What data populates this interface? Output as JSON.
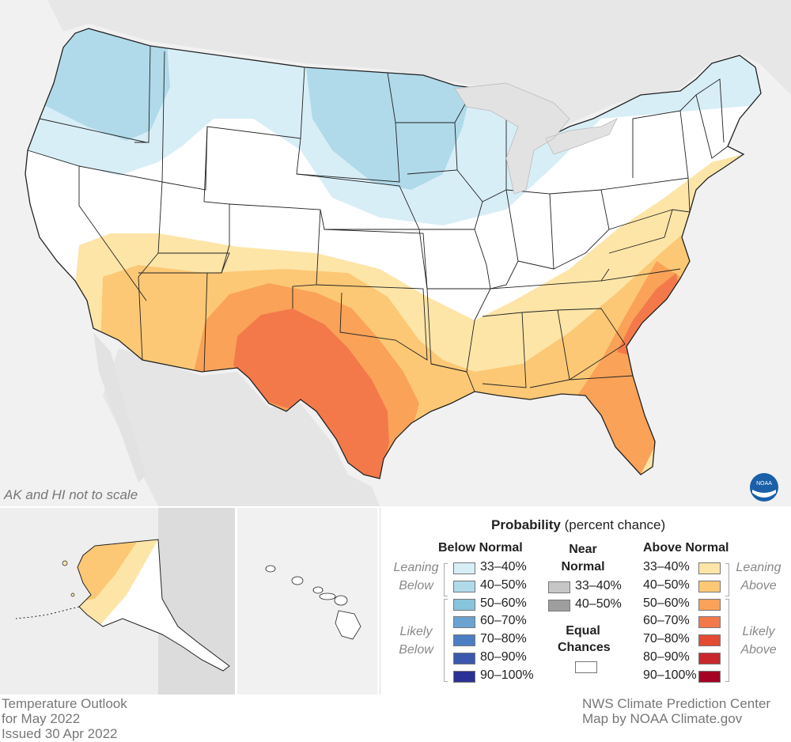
{
  "title": "Temperature Outlook",
  "period": "for May 2022",
  "issued": "Issued 30 Apr 2022",
  "credit_center": "NWS Climate Prediction Center",
  "credit_map": "Map by NOAA Climate.gov",
  "scale_note": "AK and HI not to scale",
  "logo_text": "NOAA",
  "legend": {
    "title_bold": "Probability",
    "title_rest": "(percent chance)",
    "below": {
      "header": "Below Normal",
      "leaning_label": [
        "Leaning",
        "Below"
      ],
      "likely_label": [
        "Likely",
        "Below"
      ],
      "bins": [
        {
          "label": "33–40%",
          "color": "#d8eef7"
        },
        {
          "label": "40–50%",
          "color": "#b0daea"
        },
        {
          "label": "50–60%",
          "color": "#88c4dc"
        },
        {
          "label": "60–70%",
          "color": "#6aa3d1"
        },
        {
          "label": "70–80%",
          "color": "#4d7ec4"
        },
        {
          "label": "80–90%",
          "color": "#3c58ad"
        },
        {
          "label": "90–100%",
          "color": "#2b3194"
        }
      ]
    },
    "near": {
      "header": [
        "Near",
        "Normal"
      ],
      "bins": [
        {
          "label": "33–40%",
          "color": "#c6c6c6"
        },
        {
          "label": "40–50%",
          "color": "#9e9e9e"
        }
      ],
      "equal_header": [
        "Equal",
        "Chances"
      ],
      "equal_color": "#ffffff"
    },
    "above": {
      "header": "Above Normal",
      "leaning_label": [
        "Leaning",
        "Above"
      ],
      "likely_label": [
        "Likely",
        "Above"
      ],
      "bins": [
        {
          "label": "33–40%",
          "color": "#fde5a8"
        },
        {
          "label": "40–50%",
          "color": "#fcc875"
        },
        {
          "label": "50–60%",
          "color": "#f9a258"
        },
        {
          "label": "60–70%",
          "color": "#f4794a"
        },
        {
          "label": "70–80%",
          "color": "#e34a33"
        },
        {
          "label": "80–90%",
          "color": "#c8282c"
        },
        {
          "label": "90–100%",
          "color": "#a30224"
        }
      ]
    }
  }
}
